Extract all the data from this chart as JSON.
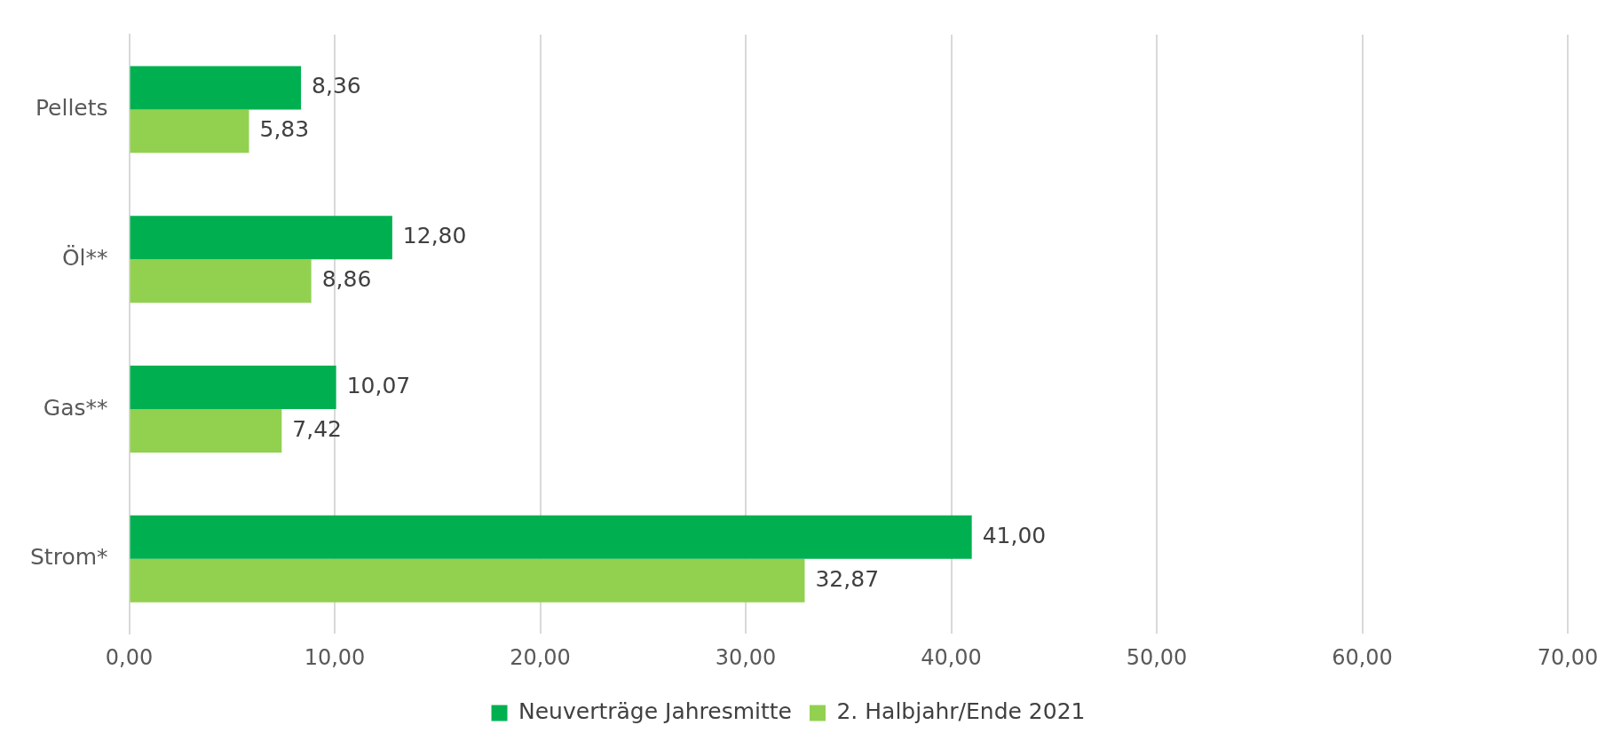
{
  "chart_data": {
    "type": "bar",
    "orientation": "horizontal",
    "categories": [
      "Pellets",
      "Öl**",
      "Gas**",
      "Strom*"
    ],
    "series": [
      {
        "name": "Neuverträge Jahresmitte",
        "color": "#00b050",
        "values": [
          8.36,
          12.8,
          10.07,
          41.0
        ],
        "value_labels": [
          "8,36",
          "12,80",
          "10,07",
          "41,00"
        ]
      },
      {
        "name": "2. Halbjahr/Ende 2021",
        "color": "#92d050",
        "values": [
          5.83,
          8.86,
          7.42,
          32.87
        ],
        "value_labels": [
          "5,83",
          "8,86",
          "7,42",
          "32,87"
        ]
      }
    ],
    "xlim": [
      0,
      70
    ],
    "xticks": [
      {
        "value": 0,
        "label": "0,00"
      },
      {
        "value": 10,
        "label": "10,00"
      },
      {
        "value": 20,
        "label": "20,00"
      },
      {
        "value": 30,
        "label": "30,00"
      },
      {
        "value": 40,
        "label": "40,00"
      },
      {
        "value": 50,
        "label": "50,00"
      },
      {
        "value": 60,
        "label": "60,00"
      },
      {
        "value": 70,
        "label": "70,00"
      }
    ],
    "grid": "x",
    "legend": "bottom"
  }
}
